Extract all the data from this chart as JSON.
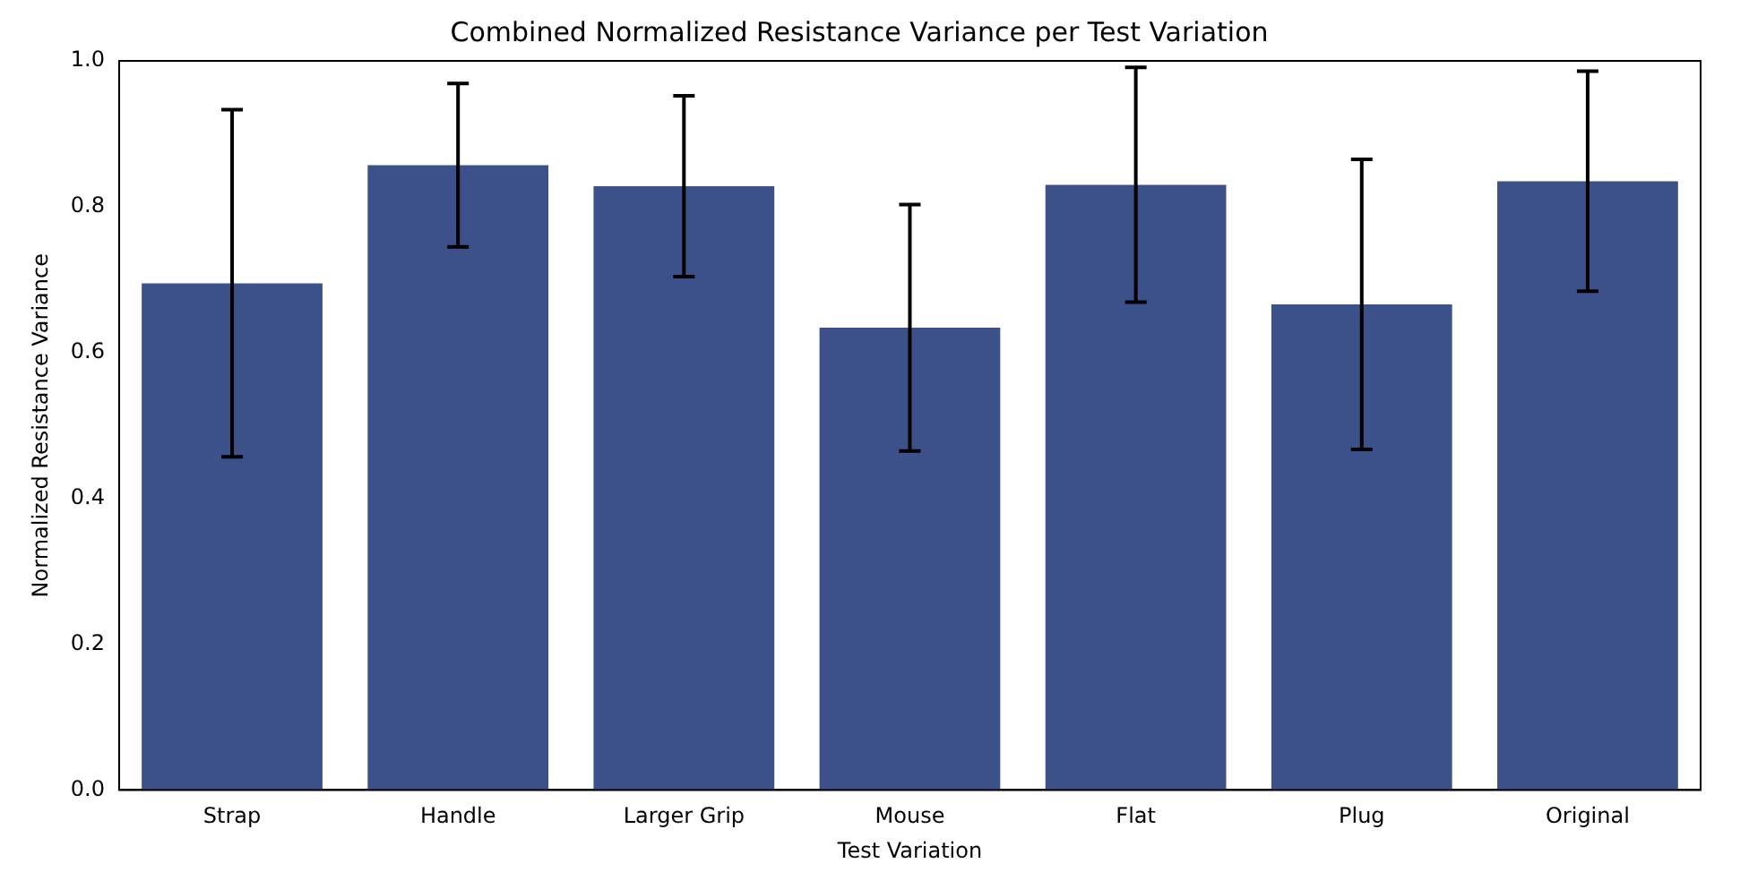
{
  "chart_data": {
    "type": "bar",
    "title": "Combined Normalized Resistance Variance per Test Variation",
    "xlabel": "Test Variation",
    "ylabel": "Normalized Resistance Variance",
    "categories": [
      "Strap",
      "Handle",
      "Larger Grip",
      "Mouse",
      "Flat",
      "Plug",
      "Original"
    ],
    "values": [
      0.695,
      0.857,
      0.828,
      0.634,
      0.83,
      0.666,
      0.835
    ],
    "errors": [
      0.238,
      0.112,
      0.124,
      0.169,
      0.161,
      0.199,
      0.151
    ],
    "color": "#3c5089",
    "ylim": [
      0,
      1
    ],
    "yticks": [
      {
        "value": 0,
        "label": "0.0"
      },
      {
        "value": 0.2,
        "label": "0.2"
      },
      {
        "value": 0.4,
        "label": "0.4"
      },
      {
        "value": 0.6,
        "label": "0.6"
      },
      {
        "value": 0.8,
        "label": "0.8"
      },
      {
        "value": 1,
        "label": "1.0"
      }
    ],
    "grid": false,
    "legend": false
  }
}
